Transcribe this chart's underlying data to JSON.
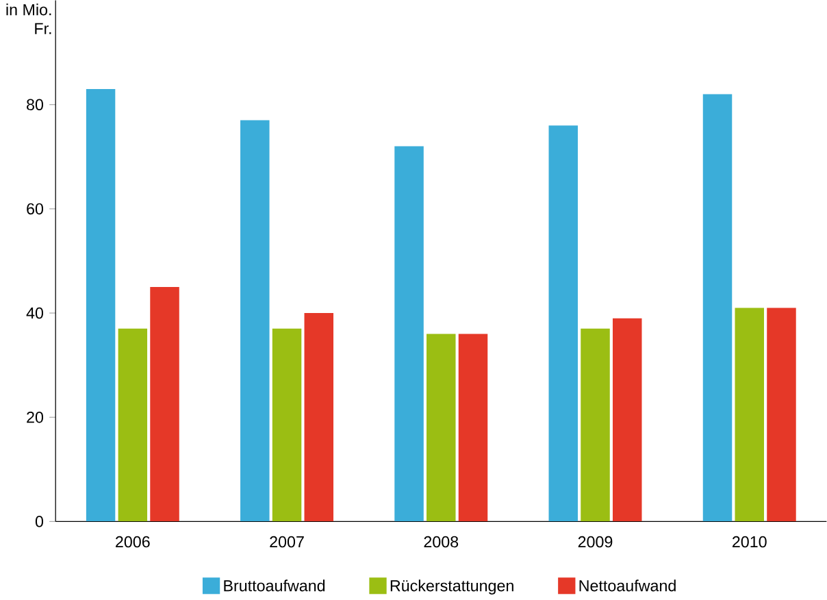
{
  "chart_data": {
    "type": "bar",
    "ylabel": "in Mio. Fr.",
    "categories": [
      "2006",
      "2007",
      "2008",
      "2009",
      "2010"
    ],
    "series": [
      {
        "name": "Bruttoaufwand",
        "color": "#3badd9",
        "values": [
          83,
          77,
          72,
          76,
          82
        ]
      },
      {
        "name": "Rückerstattungen",
        "color": "#9bbe13",
        "values": [
          37,
          37,
          36,
          37,
          41
        ]
      },
      {
        "name": "Nettoaufwand",
        "color": "#e53828",
        "values": [
          45,
          40,
          36,
          39,
          41
        ]
      }
    ],
    "ylim": [
      0,
      100
    ],
    "yticks": [
      0,
      20,
      40,
      60,
      80
    ],
    "grid": false,
    "legend": "bottom"
  }
}
